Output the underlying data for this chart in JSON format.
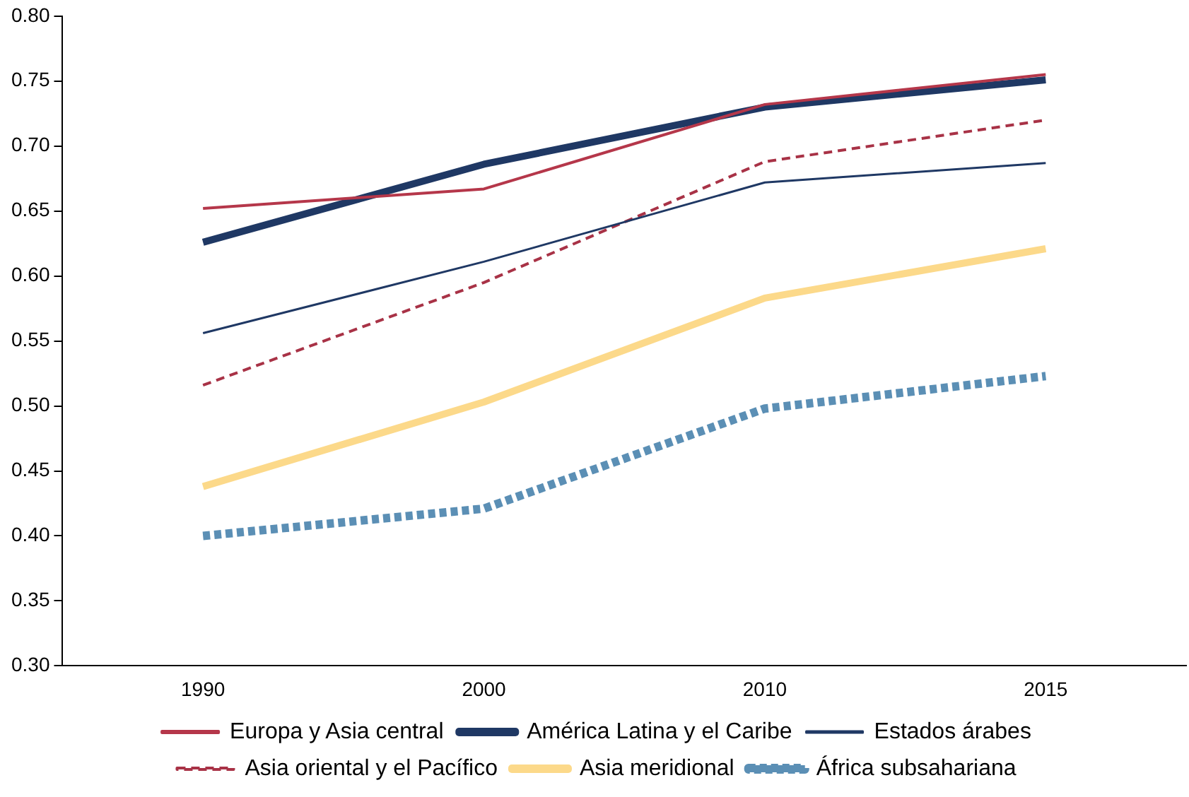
{
  "chart_data": {
    "type": "line",
    "categories": [
      "1990",
      "2000",
      "2010",
      "2015"
    ],
    "ylim": [
      0.3,
      0.8
    ],
    "yticks": [
      {
        "value": 0.3,
        "label": "0.30"
      },
      {
        "value": 0.35,
        "label": "0.35"
      },
      {
        "value": 0.4,
        "label": "0.40"
      },
      {
        "value": 0.45,
        "label": "0.45"
      },
      {
        "value": 0.5,
        "label": "0.50"
      },
      {
        "value": 0.55,
        "label": "0.55"
      },
      {
        "value": 0.6,
        "label": "0.60"
      },
      {
        "value": 0.65,
        "label": "0.65"
      },
      {
        "value": 0.7,
        "label": "0.70"
      },
      {
        "value": 0.75,
        "label": "0.75"
      },
      {
        "value": 0.8,
        "label": "0.80"
      }
    ],
    "grid": false,
    "legend": "bottom",
    "marker": "none",
    "series": [
      {
        "name": "Europa y Asia central",
        "color": "#b5374a",
        "line_style": "solid",
        "values": [
          0.652,
          0.667,
          0.732,
          0.755
        ]
      },
      {
        "name": "América Latina y el Caribe",
        "color": "#1f3864",
        "line_style": "solid",
        "values": [
          0.626,
          0.686,
          0.73,
          0.751
        ]
      },
      {
        "name": "Estados árabes",
        "color": "#1f3864",
        "line_style": "solid",
        "values": [
          0.556,
          0.611,
          0.672,
          0.687
        ]
      },
      {
        "name": "Asia oriental y el Pacífico",
        "color": "#a83246",
        "line_style": "dashed",
        "values": [
          0.516,
          0.595,
          0.688,
          0.72
        ]
      },
      {
        "name": "Asia meridional",
        "color": "#fcd98a",
        "line_style": "solid",
        "values": [
          0.438,
          0.503,
          0.583,
          0.621
        ]
      },
      {
        "name": "África subsahariana",
        "color": "#5b8fb5",
        "line_style": "dotted",
        "values": [
          0.4,
          0.421,
          0.498,
          0.523
        ]
      }
    ]
  }
}
